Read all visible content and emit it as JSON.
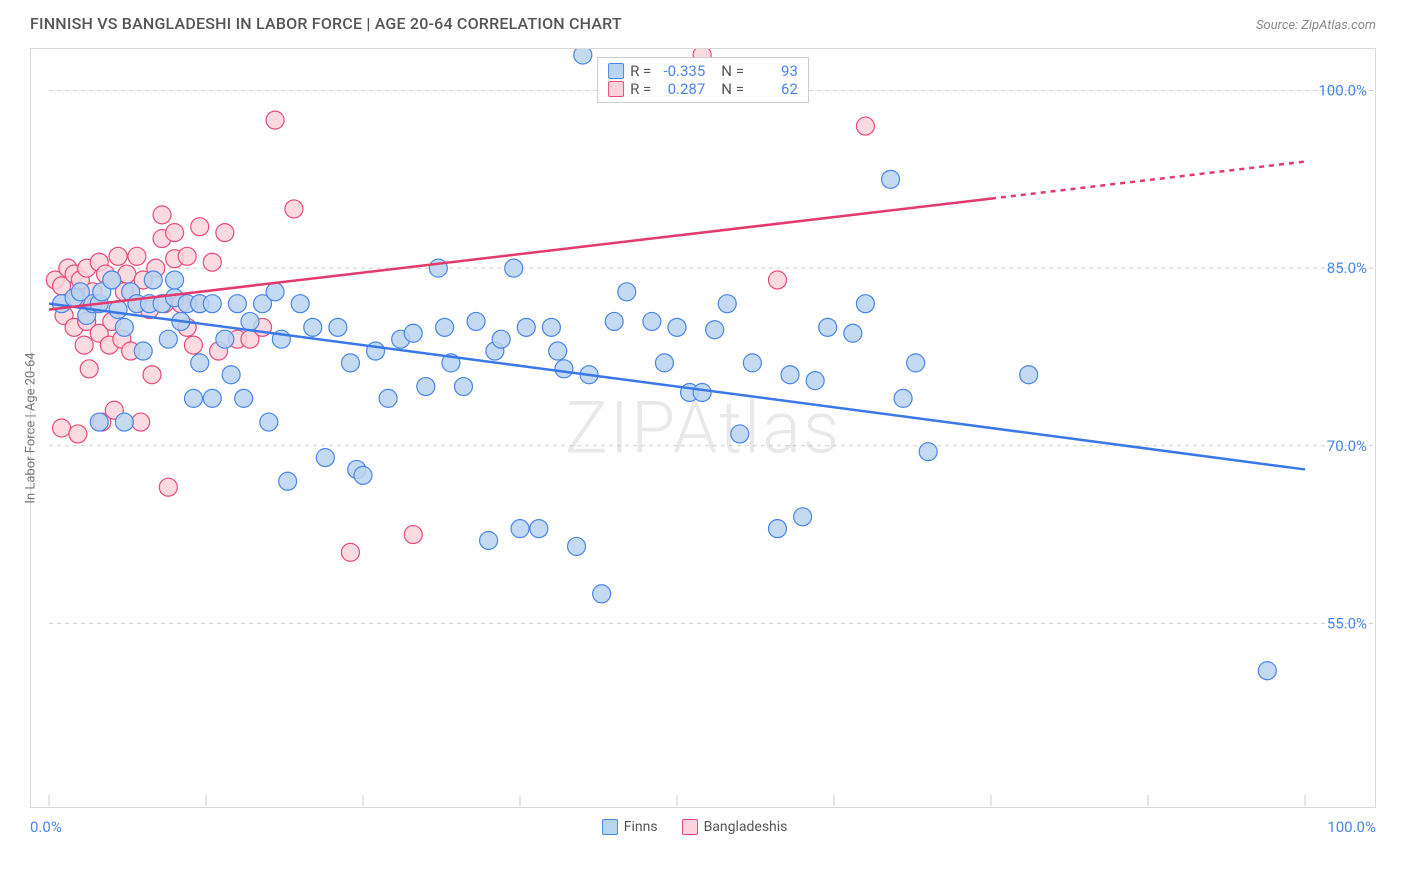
{
  "title": "FINNISH VS BANGLADESHI IN LABOR FORCE | AGE 20-64 CORRELATION CHART",
  "source": "Source: ZipAtlas.com",
  "watermark": "ZIPAtlas",
  "ylabel": "In Labor Force | Age 20-64",
  "x_axis": {
    "min_label": "0.0%",
    "max_label": "100.0%"
  },
  "y_ticks": [
    {
      "label": "100.0%",
      "value": 100
    },
    {
      "label": "85.0%",
      "value": 85
    },
    {
      "label": "70.0%",
      "value": 70
    },
    {
      "label": "55.0%",
      "value": 55
    }
  ],
  "chart": {
    "type": "scatter",
    "xlim": [
      0,
      100
    ],
    "ylim": [
      40,
      103
    ],
    "point_radius": 9,
    "background_color": "#ffffff",
    "grid_color": "#d0d0d0",
    "line_width": 2.5,
    "box_border": "#d9d9d9"
  },
  "series": [
    {
      "name": "Finns",
      "fill": "#b8d4f0",
      "stroke": "#4a86e8",
      "trend": {
        "x1": 0,
        "y1": 82,
        "x2": 100,
        "y2": 68,
        "color": "#3b78e7",
        "dash_from_x": null
      },
      "stats": {
        "r": "-0.335",
        "n": "93"
      },
      "points": [
        [
          1,
          82
        ],
        [
          2,
          82.5
        ],
        [
          2.5,
          83
        ],
        [
          3,
          81
        ],
        [
          3.5,
          82
        ],
        [
          4,
          82
        ],
        [
          4.2,
          83
        ],
        [
          5,
          84
        ],
        [
          5.5,
          81.5
        ],
        [
          6,
          80
        ],
        [
          6.5,
          83
        ],
        [
          7,
          82
        ],
        [
          7.5,
          78
        ],
        [
          8,
          82
        ],
        [
          8.3,
          84
        ],
        [
          9,
          82
        ],
        [
          9.5,
          79
        ],
        [
          10,
          82.5
        ],
        [
          10.5,
          80.5
        ],
        [
          11,
          82
        ],
        [
          11.5,
          74
        ],
        [
          12,
          82
        ],
        [
          13,
          82
        ],
        [
          14,
          79
        ],
        [
          14.5,
          76
        ],
        [
          15,
          82
        ],
        [
          15.5,
          74
        ],
        [
          16,
          80.5
        ],
        [
          17,
          82
        ],
        [
          17.5,
          72
        ],
        [
          18,
          83
        ],
        [
          18.5,
          79
        ],
        [
          19,
          67
        ],
        [
          20,
          82
        ],
        [
          21,
          80
        ],
        [
          22,
          69
        ],
        [
          23,
          80
        ],
        [
          24,
          77
        ],
        [
          24.5,
          68
        ],
        [
          25,
          67.5
        ],
        [
          26,
          78
        ],
        [
          27,
          74
        ],
        [
          28,
          79
        ],
        [
          29,
          79.5
        ],
        [
          30,
          75
        ],
        [
          31,
          85
        ],
        [
          31.5,
          80
        ],
        [
          32,
          77
        ],
        [
          33,
          75
        ],
        [
          34,
          80.5
        ],
        [
          35,
          62
        ],
        [
          35.5,
          78
        ],
        [
          36,
          79
        ],
        [
          37,
          85
        ],
        [
          37.5,
          63
        ],
        [
          38,
          80
        ],
        [
          39,
          63
        ],
        [
          40,
          80
        ],
        [
          40.5,
          78
        ],
        [
          41,
          76.5
        ],
        [
          42,
          61.5
        ],
        [
          42.5,
          103
        ],
        [
          43,
          76
        ],
        [
          44,
          57.5
        ],
        [
          45,
          80.5
        ],
        [
          46,
          83
        ],
        [
          48,
          80.5
        ],
        [
          49,
          77
        ],
        [
          50,
          80
        ],
        [
          51,
          74.5
        ],
        [
          52,
          74.5
        ],
        [
          53,
          79.8
        ],
        [
          54,
          82
        ],
        [
          55,
          71
        ],
        [
          56,
          77
        ],
        [
          58,
          63
        ],
        [
          59,
          76
        ],
        [
          60,
          64
        ],
        [
          61,
          75.5
        ],
        [
          62,
          80
        ],
        [
          64,
          79.5
        ],
        [
          65,
          82
        ],
        [
          67,
          92.5
        ],
        [
          68,
          74
        ],
        [
          69,
          77
        ],
        [
          70,
          69.5
        ],
        [
          78,
          76
        ],
        [
          97,
          51
        ],
        [
          4,
          72
        ],
        [
          6,
          72
        ],
        [
          10,
          84
        ],
        [
          12,
          77
        ],
        [
          13,
          74
        ]
      ]
    },
    {
      "name": "Bangladeshis",
      "fill": "#fcd3dc",
      "stroke": "#e84b7a",
      "trend": {
        "x1": 0,
        "y1": 81.5,
        "x2": 100,
        "y2": 94,
        "color": "#e23a6c",
        "dash_from_x": 75
      },
      "stats": {
        "r": "0.287",
        "n": "62"
      },
      "points": [
        [
          0.5,
          84
        ],
        [
          1,
          83.5
        ],
        [
          1,
          82
        ],
        [
          1.2,
          81
        ],
        [
          1.5,
          85
        ],
        [
          2,
          84.5
        ],
        [
          2,
          80
        ],
        [
          2.2,
          82.5
        ],
        [
          2.5,
          84
        ],
        [
          2.8,
          78.5
        ],
        [
          3,
          85
        ],
        [
          3,
          80.5
        ],
        [
          3.2,
          76.5
        ],
        [
          3.5,
          83
        ],
        [
          3.8,
          82
        ],
        [
          4,
          85.5
        ],
        [
          4,
          79.5
        ],
        [
          4.2,
          72
        ],
        [
          4.5,
          84.5
        ],
        [
          4.8,
          78.5
        ],
        [
          5,
          84
        ],
        [
          5,
          80.5
        ],
        [
          5.2,
          73
        ],
        [
          5.5,
          86
        ],
        [
          5.8,
          79
        ],
        [
          6,
          83
        ],
        [
          6.2,
          84.5
        ],
        [
          6.5,
          78
        ],
        [
          7,
          86
        ],
        [
          7,
          82
        ],
        [
          7.3,
          72
        ],
        [
          7.5,
          84
        ],
        [
          8,
          81.5
        ],
        [
          8.2,
          76
        ],
        [
          8.5,
          85
        ],
        [
          9,
          89.5
        ],
        [
          9,
          87.5
        ],
        [
          9.2,
          82
        ],
        [
          9.5,
          66.5
        ],
        [
          10,
          88
        ],
        [
          10,
          85.8
        ],
        [
          10.5,
          82
        ],
        [
          11,
          86
        ],
        [
          11,
          80
        ],
        [
          11.5,
          78.5
        ],
        [
          12,
          88.5
        ],
        [
          12,
          82
        ],
        [
          13,
          85.5
        ],
        [
          13.5,
          78
        ],
        [
          14,
          88
        ],
        [
          15,
          79
        ],
        [
          16,
          79
        ],
        [
          17,
          80
        ],
        [
          18,
          97.5
        ],
        [
          19.5,
          90
        ],
        [
          24,
          61
        ],
        [
          29,
          62.5
        ],
        [
          52,
          103
        ],
        [
          58,
          84
        ],
        [
          65,
          97
        ],
        [
          1,
          71.5
        ],
        [
          2.3,
          71
        ]
      ]
    }
  ],
  "legend_bottom": [
    {
      "label": "Finns",
      "fill": "#b8d4f0",
      "stroke": "#4a86e8"
    },
    {
      "label": "Bangladeshis",
      "fill": "#fcd3dc",
      "stroke": "#e84b7a"
    }
  ]
}
